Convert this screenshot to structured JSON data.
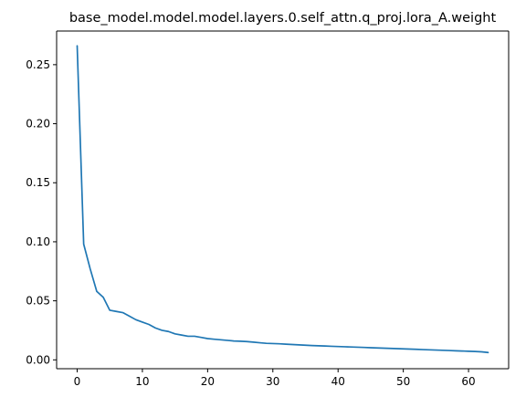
{
  "chart_data": {
    "type": "line",
    "title": "base_model.model.model.layers.0.self_attn.q_proj.lora_A.weight",
    "xlabel": "",
    "ylabel": "",
    "xlim": [
      -3.15,
      66.15
    ],
    "ylim": [
      -0.0075,
      0.2785
    ],
    "x_ticks": [
      0,
      10,
      20,
      30,
      40,
      50,
      60
    ],
    "x_tick_labels": [
      "0",
      "10",
      "20",
      "30",
      "40",
      "50",
      "60"
    ],
    "y_ticks": [
      0.0,
      0.05,
      0.1,
      0.15,
      0.2,
      0.25
    ],
    "y_tick_labels": [
      "0.00",
      "0.05",
      "0.10",
      "0.15",
      "0.20",
      "0.25"
    ],
    "grid": false,
    "legend": "none",
    "series": [
      {
        "color": "#1f77b4",
        "x": [
          0,
          1,
          2,
          3,
          4,
          5,
          6,
          7,
          8,
          9,
          10,
          11,
          12,
          13,
          14,
          15,
          16,
          17,
          18,
          19,
          20,
          21,
          22,
          23,
          24,
          25,
          26,
          27,
          28,
          29,
          30,
          31,
          32,
          33,
          34,
          35,
          36,
          37,
          38,
          39,
          40,
          41,
          42,
          43,
          44,
          45,
          46,
          47,
          48,
          49,
          50,
          51,
          52,
          53,
          54,
          55,
          56,
          57,
          58,
          59,
          60,
          61,
          62,
          63
        ],
        "y": [
          0.266,
          0.098,
          0.077,
          0.058,
          0.053,
          0.042,
          0.041,
          0.04,
          0.037,
          0.034,
          0.032,
          0.03,
          0.027,
          0.025,
          0.024,
          0.022,
          0.021,
          0.02,
          0.02,
          0.019,
          0.018,
          0.0175,
          0.017,
          0.0165,
          0.016,
          0.0158,
          0.0155,
          0.015,
          0.0145,
          0.014,
          0.0138,
          0.0136,
          0.0133,
          0.013,
          0.0127,
          0.0124,
          0.0121,
          0.0119,
          0.0117,
          0.0115,
          0.0113,
          0.0111,
          0.0109,
          0.0107,
          0.0105,
          0.0103,
          0.0101,
          0.0099,
          0.0097,
          0.0095,
          0.0093,
          0.0091,
          0.0089,
          0.0087,
          0.0085,
          0.0083,
          0.0081,
          0.0079,
          0.0077,
          0.0075,
          0.0073,
          0.0071,
          0.0068,
          0.0062
        ]
      }
    ]
  }
}
